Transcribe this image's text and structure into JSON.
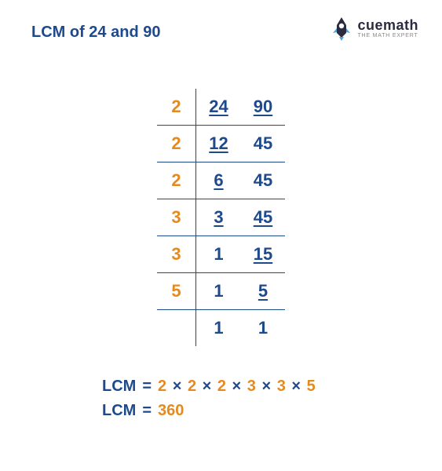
{
  "title": "LCM of 24 and 90",
  "logo": {
    "name": "cuemath",
    "tagline": "THE MATH EXPERT",
    "rocket_body": "#2a2a40",
    "rocket_flame": "#4da6d9"
  },
  "colors": {
    "primary_blue": "#1e4a8c",
    "accent_orange": "#e58a1f",
    "background": "#ffffff"
  },
  "table": {
    "rows": [
      {
        "divisor": "2",
        "a": "24",
        "a_u": true,
        "b": "90",
        "b_u": true
      },
      {
        "divisor": "2",
        "a": "12",
        "a_u": true,
        "b": "45",
        "b_u": false
      },
      {
        "divisor": "2",
        "a": "6",
        "a_u": true,
        "b": "45",
        "b_u": false
      },
      {
        "divisor": "3",
        "a": "3",
        "a_u": true,
        "b": "45",
        "b_u": true
      },
      {
        "divisor": "3",
        "a": "1",
        "a_u": false,
        "b": "15",
        "b_u": true
      },
      {
        "divisor": "5",
        "a": "1",
        "a_u": false,
        "b": "5",
        "b_u": true
      },
      {
        "divisor": "",
        "a": "1",
        "a_u": false,
        "b": "1",
        "b_u": false
      }
    ]
  },
  "result": {
    "label": "LCM",
    "equals": "=",
    "factors": [
      "2",
      "2",
      "2",
      "3",
      "3",
      "5"
    ],
    "times": "×",
    "value": "360"
  }
}
